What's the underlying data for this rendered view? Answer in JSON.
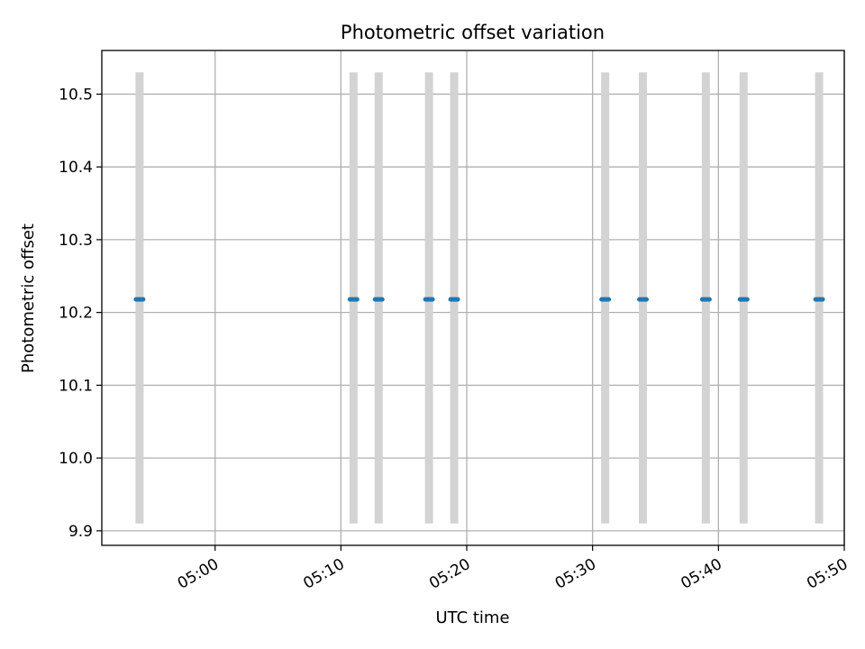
{
  "chart_data": {
    "type": "scatter",
    "title": "Photometric offset variation",
    "xlabel": "UTC time",
    "ylabel": "Photometric offset",
    "x_is_time": true,
    "xlim": [
      "04:51",
      "05:50"
    ],
    "ylim": [
      9.88,
      10.56
    ],
    "grid": true,
    "x_ticks": [
      "05:00",
      "05:10",
      "05:20",
      "05:30",
      "05:40",
      "05:50"
    ],
    "y_ticks": [
      "9.9",
      "10.0",
      "10.1",
      "10.2",
      "10.3",
      "10.4",
      "10.5"
    ],
    "series": [
      {
        "x": [
          "04:54",
          "05:11",
          "05:13",
          "05:17",
          "05:19",
          "05:31",
          "05:34",
          "05:39",
          "05:42",
          "05:48"
        ],
        "y": [
          10.218,
          10.218,
          10.218,
          10.218,
          10.218,
          10.218,
          10.218,
          10.218,
          10.218,
          10.218
        ],
        "error_low": [
          9.91,
          9.91,
          9.91,
          9.91,
          9.91,
          9.91,
          9.91,
          9.91,
          9.91,
          9.91
        ],
        "error_high": [
          10.53,
          10.53,
          10.53,
          10.53,
          10.53,
          10.53,
          10.53,
          10.53,
          10.53,
          10.53
        ]
      }
    ],
    "colors": {
      "point": "#1f77b4",
      "errorbar": "#d3d3d3",
      "grid": "#b0b0b0",
      "axis": "#000000"
    }
  }
}
